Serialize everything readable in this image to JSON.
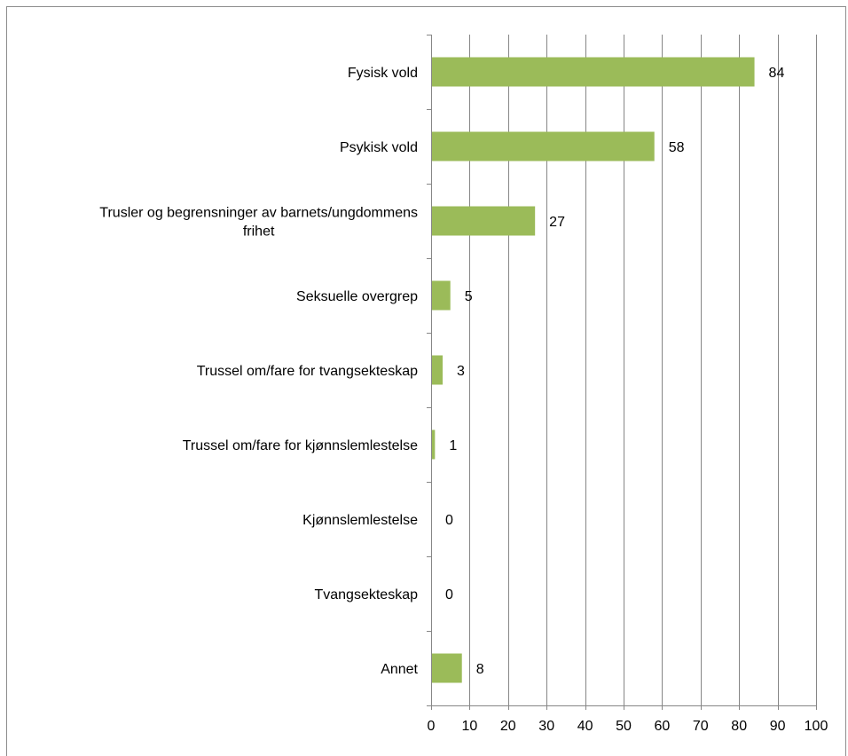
{
  "chart_data": {
    "type": "bar",
    "orientation": "horizontal",
    "categories": [
      "Fysisk vold",
      "Psykisk vold",
      "Trusler og begrensninger av barnets/ungdommens frihet",
      "Seksuelle overgrep",
      "Trussel om/fare for tvangsekteskap",
      "Trussel om/fare for kjønnslemlestelse",
      "Kjønnslemlestelse",
      "Tvangsekteskap",
      "Annet"
    ],
    "category_lines": [
      [
        "Fysisk vold"
      ],
      [
        "Psykisk vold"
      ],
      [
        "Trusler og begrensninger av barnets/ungdommens",
        "frihet"
      ],
      [
        "Seksuelle overgrep"
      ],
      [
        "Trussel om/fare for tvangsekteskap"
      ],
      [
        "Trussel om/fare for kjønnslemlestelse"
      ],
      [
        "Kjønnslemlestelse"
      ],
      [
        "Tvangsekteskap"
      ],
      [
        "Annet"
      ]
    ],
    "values": [
      84,
      58,
      27,
      5,
      3,
      1,
      0,
      0,
      8
    ],
    "data_labels": [
      "84",
      "58",
      "27",
      "5",
      "3",
      "1",
      "0",
      "0",
      "8"
    ],
    "xlim": [
      0,
      100
    ],
    "xticks": [
      0,
      10,
      20,
      30,
      40,
      50,
      60,
      70,
      80,
      90,
      100
    ],
    "xtick_labels": [
      "0",
      "10",
      "20",
      "30",
      "40",
      "50",
      "60",
      "70",
      "80",
      "90",
      "100"
    ],
    "grid": true,
    "legend": "none",
    "colors": {
      "bar": "#9bbb59",
      "grid": "#868686",
      "axis": "#868686"
    }
  }
}
